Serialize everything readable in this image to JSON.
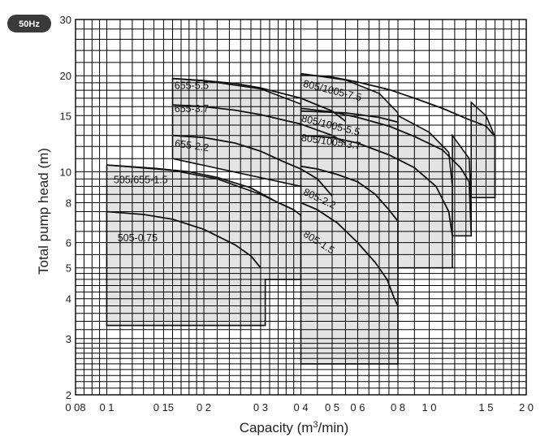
{
  "badge": "50Hz",
  "chart_data": {
    "type": "area",
    "xlabel_main": "Capacity (m",
    "xlabel_sup": "3",
    "xlabel_tail": "/min)",
    "ylabel": "Total pump head (m)",
    "x_scale": "log",
    "y_scale": "log",
    "xlim": [
      0.08,
      2.0
    ],
    "ylim": [
      2,
      30
    ],
    "grid": true,
    "x_ticks": [
      {
        "v": 0.08,
        "label": "0 08"
      },
      {
        "v": 0.1,
        "label": "0 1"
      },
      {
        "v": 0.15,
        "label": "0 15"
      },
      {
        "v": 0.2,
        "label": "0 2"
      },
      {
        "v": 0.3,
        "label": "0 3"
      },
      {
        "v": 0.4,
        "label": "0 4"
      },
      {
        "v": 0.5,
        "label": "0 5"
      },
      {
        "v": 0.6,
        "label": "0 6"
      },
      {
        "v": 0.8,
        "label": "0 8"
      },
      {
        "v": 1.0,
        "label": "1 0"
      },
      {
        "v": 1.5,
        "label": "1 5"
      },
      {
        "v": 2.0,
        "label": "2 0"
      }
    ],
    "y_ticks": [
      {
        "v": 2,
        "label": "2"
      },
      {
        "v": 3,
        "label": "3"
      },
      {
        "v": 4,
        "label": "4"
      },
      {
        "v": 5,
        "label": "5"
      },
      {
        "v": 6,
        "label": "6"
      },
      {
        "v": 8,
        "label": "8"
      },
      {
        "v": 10,
        "label": "10"
      },
      {
        "v": 15,
        "label": "15"
      },
      {
        "v": 20,
        "label": "20"
      },
      {
        "v": 30,
        "label": "30"
      }
    ],
    "x_grid": [
      0.08,
      0.085,
      0.09,
      0.095,
      0.1,
      0.11,
      0.12,
      0.13,
      0.14,
      0.15,
      0.16,
      0.17,
      0.18,
      0.19,
      0.2,
      0.22,
      0.24,
      0.26,
      0.28,
      0.3,
      0.32,
      0.34,
      0.36,
      0.38,
      0.4,
      0.45,
      0.5,
      0.55,
      0.6,
      0.65,
      0.7,
      0.75,
      0.8,
      0.9,
      1.0,
      1.1,
      1.2,
      1.3,
      1.4,
      1.5,
      1.6,
      1.7,
      1.8,
      1.9,
      2.0
    ],
    "y_grid": [
      2,
      2.1,
      2.2,
      2.3,
      2.4,
      2.5,
      2.6,
      2.7,
      2.8,
      2.9,
      3,
      3.2,
      3.4,
      3.6,
      3.8,
      4,
      4.2,
      4.4,
      4.6,
      4.8,
      5,
      5.5,
      6,
      6.5,
      7,
      7.5,
      8,
      8.5,
      9,
      9.5,
      10,
      11,
      12,
      13,
      14,
      15,
      16,
      17,
      18,
      19,
      20,
      22,
      24,
      26,
      28,
      30
    ],
    "regions": [
      {
        "name": "505-0.75-region",
        "points": [
          [
            0.1,
            3.3
          ],
          [
            0.1,
            7.5
          ],
          [
            0.15,
            7.0
          ],
          [
            0.22,
            6.2
          ],
          [
            0.3,
            5.0
          ],
          [
            0.31,
            4.8
          ],
          [
            0.31,
            3.3
          ]
        ]
      },
      {
        "name": "505/655-1.5-region",
        "points": [
          [
            0.1,
            3.3
          ],
          [
            0.1,
            10.5
          ],
          [
            0.16,
            10.1
          ],
          [
            0.22,
            9.5
          ],
          [
            0.3,
            8.5
          ],
          [
            0.38,
            7.6
          ],
          [
            0.4,
            7.3
          ],
          [
            0.4,
            4.6
          ],
          [
            0.31,
            4.6
          ],
          [
            0.31,
            3.3
          ]
        ]
      },
      {
        "name": "655-5.5-region",
        "points": [
          [
            0.16,
            19.6
          ],
          [
            0.2,
            19.3
          ],
          [
            0.3,
            18.2
          ],
          [
            0.4,
            16.3
          ],
          [
            0.5,
            14.5
          ],
          [
            0.55,
            13.3
          ],
          [
            0.55,
            9.0
          ],
          [
            0.4,
            9.0
          ],
          [
            0.16,
            11.0
          ]
        ]
      },
      {
        "name": "805-region",
        "points": [
          [
            0.4,
            2.5
          ],
          [
            0.4,
            20.3
          ],
          [
            0.55,
            19.4
          ],
          [
            0.7,
            17.6
          ],
          [
            0.8,
            15.3
          ],
          [
            0.8,
            2.5
          ]
        ]
      },
      {
        "name": "805-1.5-region",
        "points": [
          [
            0.8,
            5.0
          ],
          [
            0.8,
            15.0
          ],
          [
            1.0,
            13.3
          ],
          [
            1.15,
            11.5
          ],
          [
            1.18,
            9.0
          ],
          [
            1.18,
            5.0
          ]
        ]
      },
      {
        "name": "1005-5.5-region",
        "points": [
          [
            1.18,
            6.3
          ],
          [
            1.18,
            13.0
          ],
          [
            1.33,
            11.0
          ],
          [
            1.35,
            8.0
          ],
          [
            1.35,
            6.3
          ]
        ]
      },
      {
        "name": "1005-7.5-region",
        "points": [
          [
            1.35,
            8.3
          ],
          [
            1.35,
            16.5
          ],
          [
            1.5,
            15.0
          ],
          [
            1.6,
            12.9
          ],
          [
            1.6,
            8.3
          ]
        ]
      }
    ],
    "curves": [
      {
        "name": "505-0.75",
        "label_at": [
          0.108,
          6.05
        ],
        "rotate": 0,
        "points": [
          [
            0.1,
            7.5
          ],
          [
            0.13,
            7.35
          ],
          [
            0.16,
            7.1
          ],
          [
            0.2,
            6.6
          ],
          [
            0.25,
            5.9
          ],
          [
            0.28,
            5.45
          ],
          [
            0.3,
            5.0
          ]
        ]
      },
      {
        "name": "505/655-1.5",
        "label_at": [
          0.105,
          9.2
        ],
        "rotate": 0,
        "points": [
          [
            0.1,
            10.5
          ],
          [
            0.14,
            10.25
          ],
          [
            0.18,
            10.0
          ],
          [
            0.22,
            9.6
          ],
          [
            0.28,
            8.9
          ],
          [
            0.34,
            8.0
          ],
          [
            0.38,
            7.6
          ]
        ]
      },
      {
        "name": "655-2.2",
        "label_at": [
          0.162,
          12.0
        ],
        "rotate": 8,
        "points": [
          [
            0.16,
            13.0
          ],
          [
            0.2,
            12.8
          ],
          [
            0.25,
            12.3
          ],
          [
            0.3,
            11.6
          ],
          [
            0.35,
            10.8
          ],
          [
            0.4,
            10.2
          ],
          [
            0.45,
            9.5
          ],
          [
            0.5,
            8.4
          ]
        ]
      },
      {
        "name": "655-3.7",
        "label_at": [
          0.162,
          15.4
        ],
        "rotate": 0,
        "points": [
          [
            0.16,
            16.2
          ],
          [
            0.2,
            16.0
          ],
          [
            0.25,
            15.6
          ],
          [
            0.3,
            15.1
          ],
          [
            0.4,
            14.1
          ],
          [
            0.5,
            13.0
          ],
          [
            0.55,
            12.3
          ]
        ]
      },
      {
        "name": "655-5.5",
        "label_at": [
          0.162,
          18.2
        ],
        "rotate": 0,
        "points": [
          [
            0.16,
            19.6
          ],
          [
            0.2,
            19.3
          ],
          [
            0.25,
            18.9
          ],
          [
            0.3,
            18.3
          ],
          [
            0.4,
            17.0
          ],
          [
            0.5,
            15.5
          ],
          [
            0.55,
            14.4
          ]
        ]
      },
      {
        "name": "805-1.5",
        "label_at": [
          0.405,
          6.3
        ],
        "rotate": 32,
        "points": [
          [
            0.4,
            8.0
          ],
          [
            0.45,
            7.6
          ],
          [
            0.52,
            6.9
          ],
          [
            0.6,
            6.0
          ],
          [
            0.68,
            5.2
          ],
          [
            0.74,
            4.6
          ],
          [
            0.78,
            4.0
          ],
          [
            0.8,
            3.8
          ]
        ]
      },
      {
        "name": "805-2.2",
        "label_at": [
          0.405,
          8.5
        ],
        "rotate": 25,
        "points": [
          [
            0.4,
            10.4
          ],
          [
            0.45,
            10.2
          ],
          [
            0.52,
            9.8
          ],
          [
            0.6,
            9.3
          ],
          [
            0.68,
            8.5
          ],
          [
            0.75,
            7.6
          ],
          [
            0.8,
            7.0
          ]
        ]
      },
      {
        "name": "805/1005-3.7",
        "label_at": [
          0.4,
          12.5
        ],
        "rotate": 8,
        "points": [
          [
            0.4,
            13.0
          ],
          [
            0.5,
            12.8
          ],
          [
            0.6,
            12.3
          ],
          [
            0.75,
            11.3
          ],
          [
            0.9,
            10.3
          ],
          [
            1.05,
            9.0
          ],
          [
            1.15,
            7.5
          ],
          [
            1.18,
            6.3
          ]
        ]
      },
      {
        "name": "805/1005-5.5",
        "label_at": [
          0.4,
          14.4
        ],
        "rotate": 14,
        "points": [
          [
            0.4,
            15.8
          ],
          [
            0.5,
            15.4
          ],
          [
            0.6,
            14.8
          ],
          [
            0.75,
            13.9
          ],
          [
            0.9,
            12.9
          ],
          [
            1.1,
            11.7
          ],
          [
            1.25,
            10.3
          ],
          [
            1.33,
            9.3
          ],
          [
            1.35,
            6.4
          ]
        ]
      },
      {
        "name": "805/1005-7.5",
        "label_at": [
          0.405,
          18.5
        ],
        "rotate": 14,
        "points": [
          [
            0.4,
            20.2
          ],
          [
            0.5,
            19.8
          ],
          [
            0.6,
            19.1
          ],
          [
            0.75,
            18.1
          ],
          [
            0.9,
            17.0
          ],
          [
            1.1,
            15.8
          ],
          [
            1.3,
            14.7
          ],
          [
            1.5,
            13.9
          ],
          [
            1.6,
            12.9
          ],
          [
            1.6,
            8.4
          ]
        ]
      },
      {
        "name": "805/1005-low",
        "label_at": null,
        "rotate": 0,
        "points": [
          [
            0.4,
            15.5
          ],
          [
            0.55,
            15.3
          ],
          [
            0.7,
            14.8
          ],
          [
            0.8,
            14.3
          ]
        ]
      }
    ]
  }
}
